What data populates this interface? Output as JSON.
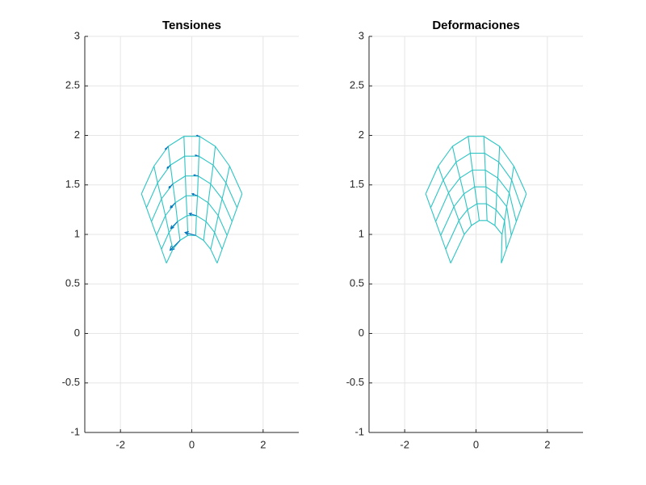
{
  "chart_data": [
    {
      "type": "mesh",
      "title": "Tensiones",
      "color": "#2ec4c4",
      "grid": true,
      "xlim": [
        -3,
        3
      ],
      "ylim": [
        -1,
        3
      ],
      "xticks": [
        -2,
        0,
        2
      ],
      "yticks": [
        -1,
        -0.5,
        0,
        0.5,
        1,
        1.5,
        2,
        2.5,
        3
      ],
      "nodes": {
        "x": [
          [
            -0.71,
            -0.53,
            -0.33,
            -0.11,
            0.11,
            0.33,
            0.53,
            0.71
          ],
          [
            -0.85,
            -0.64,
            -0.4,
            -0.13,
            0.13,
            0.4,
            0.64,
            0.85
          ],
          [
            -0.99,
            -0.74,
            -0.46,
            -0.16,
            0.16,
            0.46,
            0.74,
            0.99
          ],
          [
            -1.13,
            -0.85,
            -0.53,
            -0.18,
            0.18,
            0.53,
            0.85,
            1.13
          ],
          [
            -1.27,
            -0.96,
            -0.6,
            -0.2,
            0.2,
            0.6,
            0.96,
            1.27
          ],
          [
            -1.41,
            -1.06,
            -0.66,
            -0.22,
            0.22,
            0.66,
            1.06,
            1.41
          ]
        ],
        "y": [
          [
            0.71,
            0.85,
            0.94,
            0.99,
            0.99,
            0.94,
            0.85,
            0.71
          ],
          [
            0.85,
            1.02,
            1.13,
            1.19,
            1.19,
            1.13,
            1.02,
            0.85
          ],
          [
            0.99,
            1.19,
            1.32,
            1.39,
            1.39,
            1.32,
            1.19,
            0.99
          ],
          [
            1.13,
            1.36,
            1.51,
            1.59,
            1.59,
            1.51,
            1.36,
            1.13
          ],
          [
            1.27,
            1.52,
            1.7,
            1.79,
            1.79,
            1.7,
            1.52,
            1.27
          ],
          [
            1.41,
            1.69,
            1.89,
            1.99,
            1.99,
            1.89,
            1.69,
            1.41
          ]
        ]
      },
      "quiver": {
        "color": "#0072bd",
        "x": [
          0.11,
          0.13,
          0.16,
          0.18,
          0.2,
          0.22,
          -0.33,
          -0.4,
          -0.46,
          -0.53,
          -0.6,
          -0.66
        ],
        "y": [
          0.99,
          1.19,
          1.39,
          1.59,
          1.79,
          1.99,
          0.94,
          1.13,
          1.32,
          1.51,
          1.7,
          1.89
        ],
        "u": [
          -0.3,
          -0.2,
          -0.15,
          -0.12,
          -0.1,
          -0.08,
          -0.28,
          -0.19,
          -0.14,
          -0.11,
          -0.09,
          -0.08
        ],
        "v": [
          0.03,
          0.02,
          0.02,
          0.01,
          0.01,
          0.01,
          -0.1,
          -0.07,
          -0.05,
          -0.04,
          -0.03,
          -0.03
        ]
      }
    },
    {
      "type": "mesh",
      "title": "Deformaciones",
      "color": "#2ec4c4",
      "grid": true,
      "xlim": [
        -3,
        3
      ],
      "ylim": [
        -1,
        3
      ],
      "xticks": [
        -2,
        0,
        2
      ],
      "yticks": [
        -1,
        -0.5,
        0,
        0.5,
        1,
        1.5,
        2,
        2.5,
        3
      ],
      "nodes": {
        "x": [
          [
            -0.71,
            -0.33,
            -0.13,
            0.09,
            0.31,
            0.53,
            0.73,
            0.71
          ],
          [
            -0.85,
            -0.48,
            -0.24,
            0.03,
            0.29,
            0.56,
            0.8,
            0.85
          ],
          [
            -0.99,
            -0.62,
            -0.34,
            -0.04,
            0.28,
            0.58,
            0.86,
            0.99
          ],
          [
            -1.13,
            -0.77,
            -0.45,
            -0.1,
            0.26,
            0.61,
            0.93,
            1.13
          ],
          [
            -1.27,
            -0.92,
            -0.56,
            -0.16,
            0.24,
            0.64,
            1.0,
            1.27
          ],
          [
            -1.41,
            -1.06,
            -0.66,
            -0.22,
            0.22,
            0.66,
            1.06,
            1.41
          ]
        ],
        "y": [
          [
            0.71,
            1.0,
            1.09,
            1.14,
            1.14,
            1.09,
            1.0,
            0.71
          ],
          [
            0.85,
            1.14,
            1.25,
            1.31,
            1.31,
            1.25,
            1.14,
            0.85
          ],
          [
            0.99,
            1.28,
            1.41,
            1.48,
            1.48,
            1.41,
            1.28,
            0.99
          ],
          [
            1.13,
            1.42,
            1.57,
            1.65,
            1.65,
            1.57,
            1.42,
            1.13
          ],
          [
            1.27,
            1.55,
            1.73,
            1.82,
            1.82,
            1.73,
            1.55,
            1.27
          ],
          [
            1.41,
            1.69,
            1.89,
            1.99,
            1.99,
            1.89,
            1.69,
            1.41
          ]
        ]
      }
    }
  ]
}
